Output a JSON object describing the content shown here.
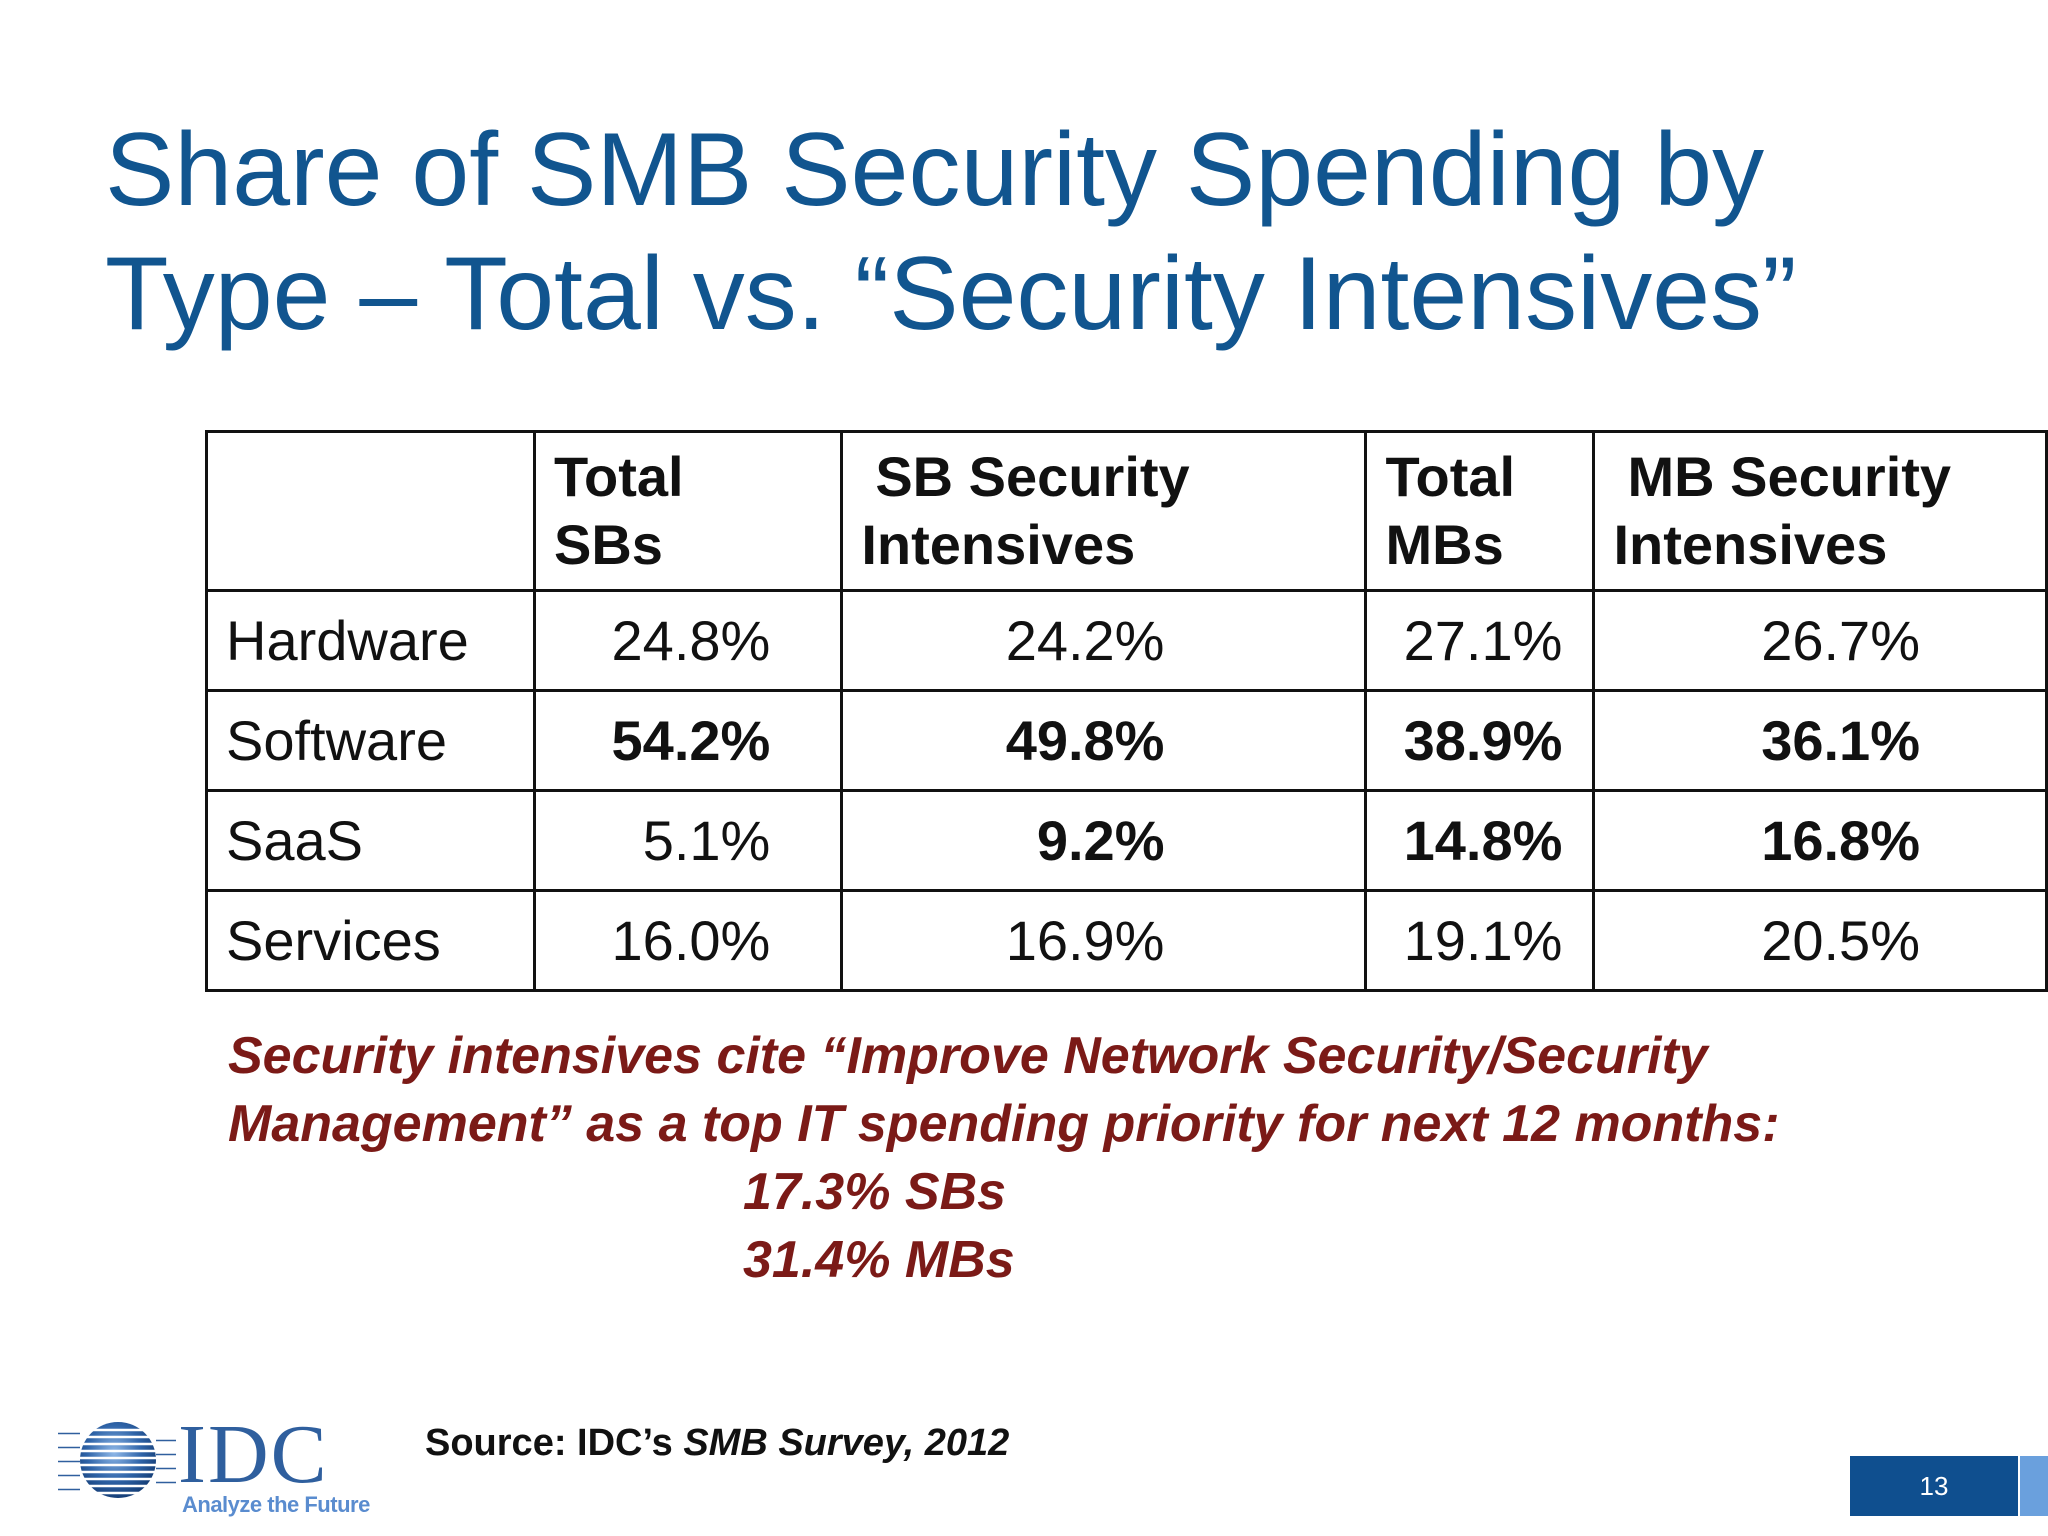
{
  "title": {
    "line1": "Share of SMB Security Spending by",
    "line2": "Type – Total vs. “Security Intensives”"
  },
  "table": {
    "headers": [
      "",
      "Total SBs",
      "SB Security Intensives",
      "Total MBs",
      "MB Security Intensives"
    ],
    "header_lines": [
      [
        "",
        ""
      ],
      [
        "Total",
        "SBs"
      ],
      [
        "SB Security",
        "Intensives"
      ],
      [
        "Total",
        "MBs"
      ],
      [
        "MB Security",
        "Intensives"
      ]
    ],
    "rows": [
      {
        "label": "Hardware",
        "values": [
          "24.8%",
          "24.2%",
          "27.1%",
          "26.7%"
        ],
        "bold": [
          false,
          false,
          false,
          false
        ]
      },
      {
        "label": "Software",
        "values": [
          "54.2%",
          "49.8%",
          "38.9%",
          "36.1%"
        ],
        "bold": [
          true,
          true,
          true,
          true
        ]
      },
      {
        "label": "SaaS",
        "values": [
          "5.1%",
          "9.2%",
          "14.8%",
          "16.8%"
        ],
        "bold": [
          false,
          true,
          true,
          true
        ]
      },
      {
        "label": "Services",
        "values": [
          "16.0%",
          "16.9%",
          "19.1%",
          "20.5%"
        ],
        "bold": [
          false,
          false,
          false,
          false
        ]
      }
    ]
  },
  "note": {
    "line1": "Security intensives cite “Improve Network Security/Security",
    "line2": "Management” as a top IT spending priority for next 12 months:",
    "line3": "17.3% SBs",
    "line4": "31.4% MBs"
  },
  "source": {
    "prefix": "Source: IDC’s ",
    "title": "SMB Survey, 2012"
  },
  "logo": {
    "name": "IDC",
    "tagline": "Analyze the Future"
  },
  "page_number": "13",
  "colors": {
    "title": "#11558f",
    "note": "#7b1a17",
    "page_box": "#0f4f8f",
    "page_strip": "#6aa0dd"
  }
}
